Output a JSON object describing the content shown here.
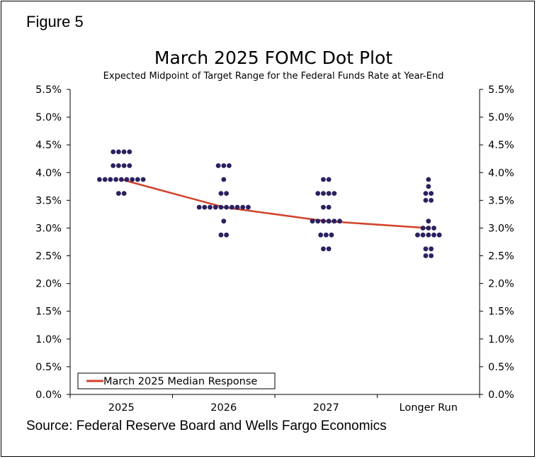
{
  "figure_label": "Figure 5",
  "source": "Source: Federal Reserve Board and Wells Fargo Economics",
  "colors": {
    "dot": "#2a2160",
    "median_line": "#d1432b",
    "axis": "#000000"
  },
  "chart_data": {
    "type": "scatter",
    "title": "March 2025 FOMC Dot Plot",
    "subtitle": "Expected Midpoint of Target Range for the Federal Funds Rate at Year-End",
    "categories": [
      "2025",
      "2026",
      "2027",
      "Longer Run"
    ],
    "ylim": [
      0,
      5.5
    ],
    "yticks": [
      0,
      0.5,
      1.0,
      1.5,
      2.0,
      2.5,
      3.0,
      3.5,
      4.0,
      4.5,
      5.0,
      5.5
    ],
    "ytick_labels": [
      "0.0%",
      "0.5%",
      "1.0%",
      "1.5%",
      "2.0%",
      "2.5%",
      "3.0%",
      "3.5%",
      "4.0%",
      "4.5%",
      "5.0%",
      "5.5%"
    ],
    "dots": [
      {
        "category": "2025",
        "counts": [
          {
            "rate": 4.375,
            "n": 4
          },
          {
            "rate": 4.125,
            "n": 4
          },
          {
            "rate": 3.875,
            "n": 9
          },
          {
            "rate": 3.625,
            "n": 2
          }
        ]
      },
      {
        "category": "2026",
        "counts": [
          {
            "rate": 4.125,
            "n": 3
          },
          {
            "rate": 3.875,
            "n": 1
          },
          {
            "rate": 3.625,
            "n": 2
          },
          {
            "rate": 3.375,
            "n": 10
          },
          {
            "rate": 3.125,
            "n": 1
          },
          {
            "rate": 2.875,
            "n": 2
          }
        ]
      },
      {
        "category": "2027",
        "counts": [
          {
            "rate": 3.875,
            "n": 2
          },
          {
            "rate": 3.625,
            "n": 4
          },
          {
            "rate": 3.375,
            "n": 2
          },
          {
            "rate": 3.125,
            "n": 6
          },
          {
            "rate": 2.875,
            "n": 3
          },
          {
            "rate": 2.625,
            "n": 2
          }
        ]
      },
      {
        "category": "Longer Run",
        "counts": [
          {
            "rate": 3.875,
            "n": 1
          },
          {
            "rate": 3.75,
            "n": 1
          },
          {
            "rate": 3.625,
            "n": 2
          },
          {
            "rate": 3.5,
            "n": 2
          },
          {
            "rate": 3.125,
            "n": 1
          },
          {
            "rate": 3.0,
            "n": 3
          },
          {
            "rate": 2.875,
            "n": 5
          },
          {
            "rate": 2.625,
            "n": 2
          },
          {
            "rate": 2.5,
            "n": 2
          }
        ]
      }
    ],
    "series": [
      {
        "name": "March 2025 Median Response",
        "values": [
          3.875,
          3.375,
          3.125,
          3.0
        ]
      }
    ],
    "legend": "bottom-left"
  }
}
